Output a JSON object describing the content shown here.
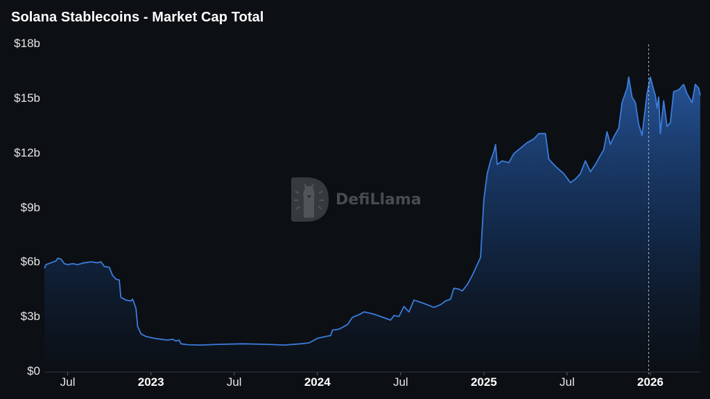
{
  "title": "Solana Stablecoins - Market Cap Total",
  "watermark": {
    "text": "DefiLlama",
    "icon": "llama-logo-icon"
  },
  "axes": {
    "y_ticks": [
      {
        "label": "$18b",
        "value": 18
      },
      {
        "label": "$15b",
        "value": 15
      },
      {
        "label": "$12b",
        "value": 12
      },
      {
        "label": "$9b",
        "value": 9
      },
      {
        "label": "$6b",
        "value": 6
      },
      {
        "label": "$3b",
        "value": 3
      },
      {
        "label": "$0",
        "value": 0
      }
    ],
    "x_ticks": [
      {
        "label": "Jul",
        "x": 2022.5,
        "bold": false
      },
      {
        "label": "2023",
        "x": 2023.0,
        "bold": true
      },
      {
        "label": "Jul",
        "x": 2023.5,
        "bold": false
      },
      {
        "label": "2024",
        "x": 2024.0,
        "bold": true
      },
      {
        "label": "Jul",
        "x": 2024.5,
        "bold": false
      },
      {
        "label": "2025",
        "x": 2025.0,
        "bold": true
      },
      {
        "label": "Jul",
        "x": 2025.5,
        "bold": false
      },
      {
        "label": "2026",
        "x": 2026.0,
        "bold": true
      }
    ]
  },
  "colors": {
    "background": "#0c0f13",
    "line": "#3b7ddd",
    "fill_top": "#2a5fae",
    "fill_bottom": "#0c121c",
    "axis": "#3a3f46",
    "marker_line": "#b0b4ba"
  },
  "marker": {
    "x": 2025.99,
    "style": "dashed"
  },
  "chart_data": {
    "type": "area",
    "title": "Solana Stablecoins - Market Cap Total",
    "xlabel": "",
    "ylabel": "",
    "unit": "USD billions",
    "ylim": [
      0,
      18
    ],
    "xlim": [
      2022.36,
      2026.3
    ],
    "grid": false,
    "legend": null,
    "x_tick_labels": [
      "Jul",
      "2023",
      "Jul",
      "2024",
      "Jul",
      "2025",
      "Jul",
      "2026"
    ],
    "y_tick_labels": [
      "$0",
      "$3b",
      "$6b",
      "$9b",
      "$12b",
      "$15b",
      "$18b"
    ],
    "series": [
      {
        "name": "Market Cap Total",
        "points": [
          [
            2022.36,
            5.7
          ],
          [
            2022.37,
            5.9
          ],
          [
            2022.4,
            6.0
          ],
          [
            2022.43,
            6.1
          ],
          [
            2022.44,
            6.25
          ],
          [
            2022.46,
            6.2
          ],
          [
            2022.48,
            5.95
          ],
          [
            2022.5,
            5.9
          ],
          [
            2022.53,
            5.95
          ],
          [
            2022.56,
            5.9
          ],
          [
            2022.6,
            6.0
          ],
          [
            2022.64,
            6.05
          ],
          [
            2022.68,
            6.0
          ],
          [
            2022.7,
            6.05
          ],
          [
            2022.72,
            5.8
          ],
          [
            2022.75,
            5.75
          ],
          [
            2022.77,
            5.3
          ],
          [
            2022.79,
            5.1
          ],
          [
            2022.81,
            5.05
          ],
          [
            2022.82,
            4.1
          ],
          [
            2022.85,
            3.95
          ],
          [
            2022.88,
            3.9
          ],
          [
            2022.89,
            4.0
          ],
          [
            2022.91,
            3.5
          ],
          [
            2022.92,
            2.5
          ],
          [
            2022.94,
            2.1
          ],
          [
            2022.97,
            1.95
          ],
          [
            2023.02,
            1.85
          ],
          [
            2023.06,
            1.8
          ],
          [
            2023.1,
            1.75
          ],
          [
            2023.13,
            1.8
          ],
          [
            2023.15,
            1.7
          ],
          [
            2023.17,
            1.75
          ],
          [
            2023.18,
            1.55
          ],
          [
            2023.22,
            1.5
          ],
          [
            2023.3,
            1.48
          ],
          [
            2023.4,
            1.52
          ],
          [
            2023.55,
            1.55
          ],
          [
            2023.7,
            1.52
          ],
          [
            2023.8,
            1.48
          ],
          [
            2023.9,
            1.55
          ],
          [
            2023.95,
            1.6
          ],
          [
            2024.0,
            1.85
          ],
          [
            2024.05,
            1.95
          ],
          [
            2024.08,
            2.0
          ],
          [
            2024.09,
            2.3
          ],
          [
            2024.13,
            2.35
          ],
          [
            2024.18,
            2.6
          ],
          [
            2024.21,
            3.0
          ],
          [
            2024.25,
            3.15
          ],
          [
            2024.28,
            3.3
          ],
          [
            2024.33,
            3.2
          ],
          [
            2024.38,
            3.05
          ],
          [
            2024.44,
            2.85
          ],
          [
            2024.46,
            3.1
          ],
          [
            2024.49,
            3.05
          ],
          [
            2024.52,
            3.6
          ],
          [
            2024.55,
            3.3
          ],
          [
            2024.58,
            3.95
          ],
          [
            2024.63,
            3.8
          ],
          [
            2024.7,
            3.55
          ],
          [
            2024.74,
            3.7
          ],
          [
            2024.77,
            3.9
          ],
          [
            2024.8,
            4.0
          ],
          [
            2024.82,
            4.6
          ],
          [
            2024.85,
            4.55
          ],
          [
            2024.87,
            4.45
          ],
          [
            2024.9,
            4.8
          ],
          [
            2024.93,
            5.3
          ],
          [
            2024.96,
            5.9
          ],
          [
            2024.98,
            6.3
          ],
          [
            2025.0,
            9.5
          ],
          [
            2025.02,
            10.9
          ],
          [
            2025.04,
            11.6
          ],
          [
            2025.06,
            12.1
          ],
          [
            2025.07,
            12.5
          ],
          [
            2025.08,
            11.4
          ],
          [
            2025.11,
            11.6
          ],
          [
            2025.15,
            11.5
          ],
          [
            2025.18,
            12.0
          ],
          [
            2025.22,
            12.3
          ],
          [
            2025.26,
            12.6
          ],
          [
            2025.3,
            12.8
          ],
          [
            2025.33,
            13.1
          ],
          [
            2025.37,
            13.1
          ],
          [
            2025.39,
            11.7
          ],
          [
            2025.43,
            11.3
          ],
          [
            2025.48,
            10.9
          ],
          [
            2025.52,
            10.4
          ],
          [
            2025.55,
            10.6
          ],
          [
            2025.58,
            10.9
          ],
          [
            2025.61,
            11.6
          ],
          [
            2025.64,
            11.0
          ],
          [
            2025.67,
            11.4
          ],
          [
            2025.7,
            11.9
          ],
          [
            2025.72,
            12.2
          ],
          [
            2025.74,
            13.2
          ],
          [
            2025.76,
            12.5
          ],
          [
            2025.78,
            12.9
          ],
          [
            2025.81,
            13.4
          ],
          [
            2025.83,
            14.8
          ],
          [
            2025.86,
            15.6
          ],
          [
            2025.87,
            16.2
          ],
          [
            2025.89,
            15.1
          ],
          [
            2025.91,
            14.8
          ],
          [
            2025.93,
            13.6
          ],
          [
            2025.95,
            13.0
          ],
          [
            2025.98,
            15.3
          ],
          [
            2026.0,
            16.2
          ],
          [
            2026.02,
            15.5
          ],
          [
            2026.03,
            15.2
          ],
          [
            2026.04,
            14.5
          ],
          [
            2026.05,
            15.1
          ],
          [
            2026.06,
            13.1
          ],
          [
            2026.08,
            14.9
          ],
          [
            2026.1,
            13.5
          ],
          [
            2026.12,
            13.7
          ],
          [
            2026.14,
            15.4
          ],
          [
            2026.17,
            15.5
          ],
          [
            2026.2,
            15.8
          ],
          [
            2026.22,
            15.3
          ],
          [
            2026.25,
            14.8
          ],
          [
            2026.27,
            15.8
          ],
          [
            2026.29,
            15.6
          ],
          [
            2026.3,
            15.2
          ]
        ]
      }
    ]
  }
}
